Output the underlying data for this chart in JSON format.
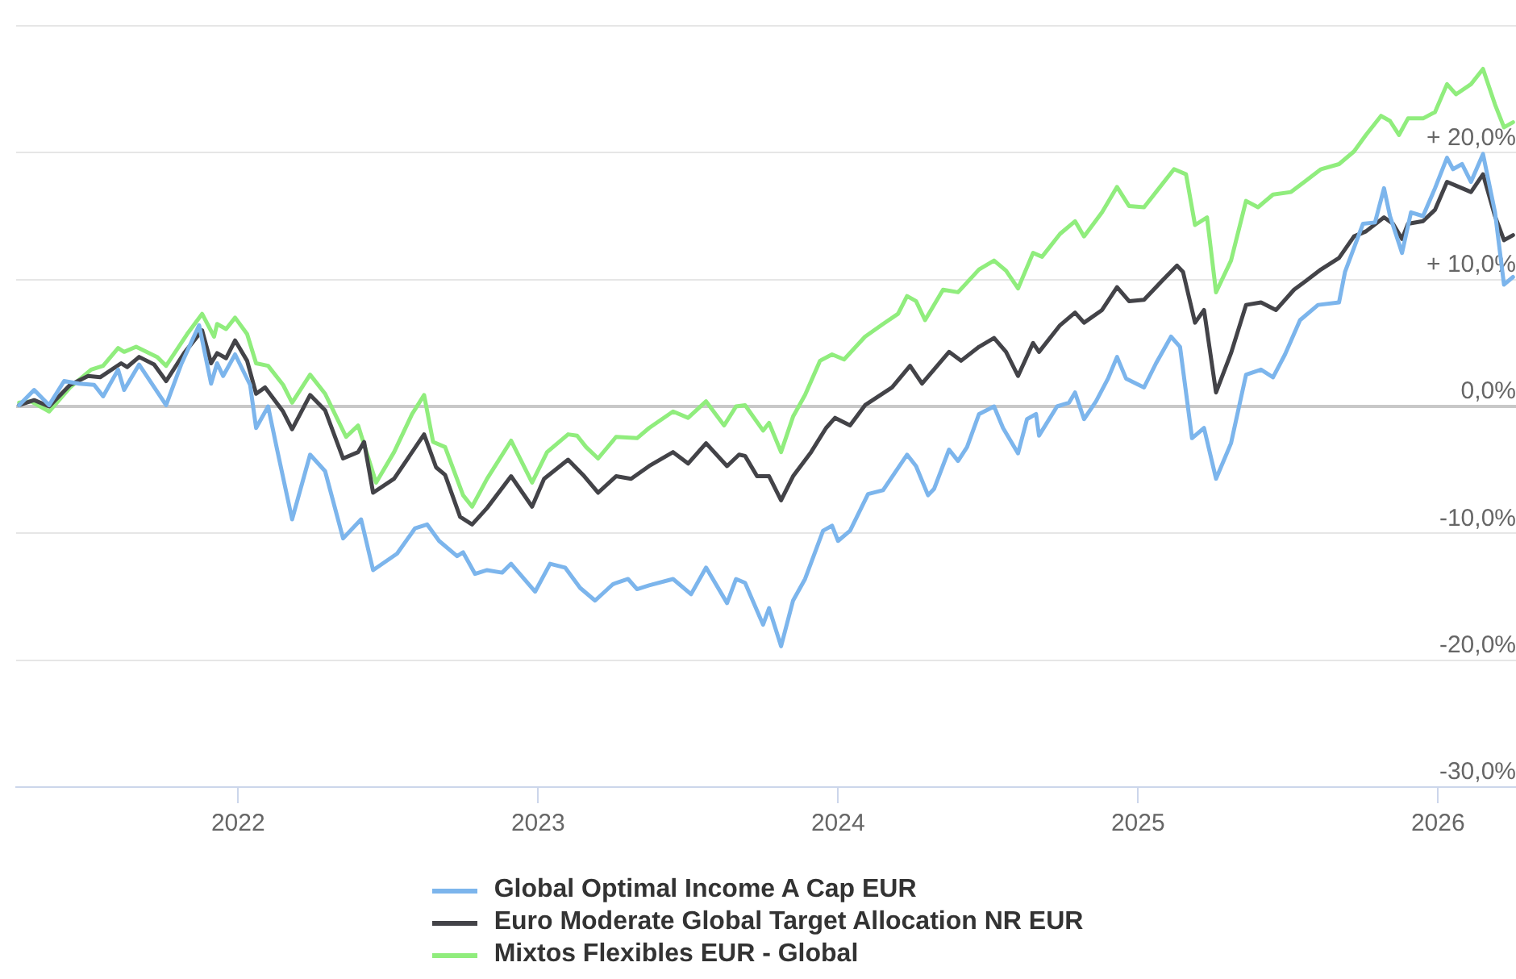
{
  "chart_data": {
    "type": "line",
    "legend": "bottom",
    "grid": "y",
    "marker": "none",
    "line_style": "solid",
    "xlim": [
      2021.26,
      2026.26
    ],
    "xticks": [
      2022,
      2023,
      2024,
      2025,
      2026
    ],
    "ylim": [
      -30,
      30
    ],
    "yticks": [
      {
        "value": -30,
        "label": "-30,0%"
      },
      {
        "value": -20,
        "label": "-20,0%"
      },
      {
        "value": -10,
        "label": "-10,0%"
      },
      {
        "value": 0,
        "label": "0,0%"
      },
      {
        "value": 10,
        "label": "+ 10,0%"
      },
      {
        "value": 20,
        "label": "+ 20,0%"
      },
      {
        "value": 30,
        "label": null
      }
    ],
    "series": [
      {
        "name": "Global Optimal Income A Cap EUR",
        "color": "#7cb5ec",
        "x": [
          2021.27,
          2021.32,
          2021.37,
          2021.42,
          2021.47,
          2021.52,
          2021.55,
          2021.6,
          2021.62,
          2021.67,
          2021.76,
          2021.81,
          2021.87,
          2021.91,
          2021.93,
          2021.95,
          2021.99,
          2022.04,
          2022.06,
          2022.1,
          2022.13,
          2022.18,
          2022.24,
          2022.29,
          2022.35,
          2022.41,
          2022.45,
          2022.53,
          2022.59,
          2022.63,
          2022.67,
          2022.73,
          2022.75,
          2022.79,
          2022.83,
          2022.88,
          2022.91,
          2022.99,
          2023.04,
          2023.09,
          2023.14,
          2023.19,
          2023.25,
          2023.3,
          2023.33,
          2023.37,
          2023.45,
          2023.51,
          2023.56,
          2023.63,
          2023.66,
          2023.69,
          2023.75,
          2023.77,
          2023.81,
          2023.85,
          2023.89,
          2023.95,
          2023.98,
          2024.0,
          2024.04,
          2024.1,
          2024.15,
          2024.19,
          2024.23,
          2024.26,
          2024.3,
          2024.32,
          2024.37,
          2024.4,
          2024.43,
          2024.47,
          2024.52,
          2024.55,
          2024.6,
          2024.63,
          2024.66,
          2024.67,
          2024.73,
          2024.77,
          2024.79,
          2024.82,
          2024.86,
          2024.9,
          2024.93,
          2024.96,
          2025.02,
          2025.06,
          2025.11,
          2025.14,
          2025.18,
          2025.22,
          2025.26,
          2025.31,
          2025.36,
          2025.41,
          2025.45,
          2025.49,
          2025.54,
          2025.6,
          2025.67,
          2025.69,
          2025.75,
          2025.79,
          2025.82,
          2025.84,
          2025.88,
          2025.91,
          2025.95,
          2025.99,
          2026.03,
          2026.05,
          2026.08,
          2026.11,
          2026.15,
          2026.19,
          2026.22,
          2026.25
        ],
        "values": [
          0.1,
          1.3,
          0.1,
          2.0,
          1.8,
          1.7,
          0.8,
          2.9,
          1.3,
          3.3,
          0.1,
          3.3,
          6.4,
          1.8,
          3.4,
          2.4,
          4.1,
          1.7,
          -1.7,
          0,
          -3.4,
          -8.9,
          -3.8,
          -5.1,
          -10.4,
          -8.9,
          -12.9,
          -11.6,
          -9.6,
          -9.3,
          -10.6,
          -11.8,
          -11.5,
          -13.2,
          -12.9,
          -13.1,
          -12.4,
          -14.6,
          -12.4,
          -12.7,
          -14.3,
          -15.3,
          -14.0,
          -13.6,
          -14.4,
          -14.1,
          -13.6,
          -14.8,
          -12.7,
          -15.5,
          -13.6,
          -13.9,
          -17.2,
          -15.9,
          -18.9,
          -15.3,
          -13.6,
          -9.8,
          -9.4,
          -10.6,
          -9.8,
          -6.9,
          -6.6,
          -5.2,
          -3.8,
          -4.7,
          -7.0,
          -6.5,
          -3.4,
          -4.3,
          -3.2,
          -0.6,
          0,
          -1.7,
          -3.7,
          -1.0,
          -0.6,
          -2.3,
          0,
          0.3,
          1.1,
          -1.0,
          0.4,
          2.2,
          3.9,
          2.2,
          1.5,
          3.4,
          5.5,
          4.7,
          -2.5,
          -1.7,
          -5.7,
          -2.9,
          2.5,
          2.9,
          2.3,
          4.1,
          6.8,
          8.0,
          8.2,
          10.6,
          14.4,
          14.5,
          17.2,
          15.0,
          12.1,
          15.3,
          15.0,
          17.2,
          19.6,
          18.7,
          19.1,
          17.7,
          19.9,
          15.3,
          9.6,
          10.2
        ]
      },
      {
        "name": "Euro Moderate Global Target Allocation NR EUR",
        "color": "#434348",
        "x": [
          2021.27,
          2021.32,
          2021.37,
          2021.44,
          2021.5,
          2021.54,
          2021.61,
          2021.63,
          2021.67,
          2021.72,
          2021.76,
          2021.82,
          2021.88,
          2021.91,
          2021.93,
          2021.96,
          2021.99,
          2022.03,
          2022.06,
          2022.09,
          2022.15,
          2022.18,
          2022.24,
          2022.29,
          2022.35,
          2022.4,
          2022.42,
          2022.45,
          2022.52,
          2022.62,
          2022.66,
          2022.69,
          2022.74,
          2022.78,
          2022.83,
          2022.91,
          2022.98,
          2023.02,
          2023.1,
          2023.15,
          2023.2,
          2023.26,
          2023.31,
          2023.37,
          2023.45,
          2023.5,
          2023.56,
          2023.63,
          2023.67,
          2023.69,
          2023.73,
          2023.77,
          2023.81,
          2023.85,
          2023.91,
          2023.96,
          2023.99,
          2024.04,
          2024.09,
          2024.18,
          2024.24,
          2024.28,
          2024.37,
          2024.41,
          2024.47,
          2024.52,
          2024.56,
          2024.6,
          2024.65,
          2024.67,
          2024.74,
          2024.79,
          2024.82,
          2024.88,
          2024.93,
          2024.97,
          2025.02,
          2025.08,
          2025.13,
          2025.15,
          2025.19,
          2025.22,
          2025.26,
          2025.31,
          2025.36,
          2025.41,
          2025.46,
          2025.52,
          2025.56,
          2025.61,
          2025.67,
          2025.72,
          2025.76,
          2025.82,
          2025.85,
          2025.88,
          2025.9,
          2025.95,
          2025.99,
          2026.03,
          2026.08,
          2026.11,
          2026.15,
          2026.19,
          2026.22,
          2026.25
        ],
        "values": [
          0.1,
          0.5,
          0,
          1.7,
          2.4,
          2.3,
          3.4,
          3.1,
          3.9,
          3.3,
          2.0,
          4.2,
          6.0,
          3.4,
          4.2,
          3.8,
          5.2,
          3.6,
          1.0,
          1.5,
          -0.4,
          -1.8,
          0.9,
          -0.3,
          -4.1,
          -3.6,
          -2.8,
          -6.8,
          -5.7,
          -2.2,
          -4.8,
          -5.4,
          -8.7,
          -9.3,
          -8.0,
          -5.5,
          -7.9,
          -5.7,
          -4.2,
          -5.4,
          -6.8,
          -5.5,
          -5.7,
          -4.7,
          -3.6,
          -4.5,
          -2.9,
          -4.7,
          -3.8,
          -3.9,
          -5.5,
          -5.5,
          -7.4,
          -5.5,
          -3.6,
          -1.7,
          -0.9,
          -1.5,
          0.1,
          1.5,
          3.2,
          1.8,
          4.3,
          3.6,
          4.7,
          5.4,
          4.3,
          2.4,
          5.0,
          4.3,
          6.4,
          7.4,
          6.6,
          7.6,
          9.4,
          8.3,
          8.4,
          9.9,
          11.1,
          10.6,
          6.6,
          7.6,
          1.1,
          4.2,
          8.0,
          8.2,
          7.6,
          9.2,
          9.9,
          10.8,
          11.7,
          13.4,
          13.8,
          14.9,
          14.4,
          13.2,
          14.4,
          14.6,
          15.5,
          17.7,
          17.2,
          16.9,
          18.3,
          15.0,
          13.1,
          13.5
        ]
      },
      {
        "name": "Mixtos Flexibles EUR - Global",
        "color": "#90ed7d",
        "x": [
          2021.27,
          2021.31,
          2021.37,
          2021.44,
          2021.51,
          2021.55,
          2021.6,
          2021.62,
          2021.66,
          2021.73,
          2021.76,
          2021.83,
          2021.88,
          2021.92,
          2021.93,
          2021.96,
          2021.99,
          2022.03,
          2022.06,
          2022.1,
          2022.15,
          2022.18,
          2022.24,
          2022.29,
          2022.36,
          2022.4,
          2022.46,
          2022.52,
          2022.58,
          2022.62,
          2022.65,
          2022.69,
          2022.75,
          2022.78,
          2022.83,
          2022.91,
          2022.98,
          2023.03,
          2023.1,
          2023.13,
          2023.16,
          2023.2,
          2023.26,
          2023.33,
          2023.37,
          2023.45,
          2023.5,
          2023.56,
          2023.62,
          2023.66,
          2023.69,
          2023.75,
          2023.77,
          2023.81,
          2023.85,
          2023.89,
          2023.94,
          2023.98,
          2024.02,
          2024.09,
          2024.15,
          2024.2,
          2024.23,
          2024.26,
          2024.29,
          2024.35,
          2024.4,
          2024.47,
          2024.52,
          2024.56,
          2024.6,
          2024.65,
          2024.68,
          2024.74,
          2024.79,
          2024.82,
          2024.88,
          2024.93,
          2024.97,
          2025.02,
          2025.06,
          2025.12,
          2025.16,
          2025.19,
          2025.23,
          2025.26,
          2025.31,
          2025.36,
          2025.4,
          2025.45,
          2025.51,
          2025.56,
          2025.61,
          2025.67,
          2025.72,
          2025.76,
          2025.81,
          2025.84,
          2025.87,
          2025.9,
          2025.95,
          2025.99,
          2026.03,
          2026.06,
          2026.11,
          2026.15,
          2026.19,
          2026.22,
          2026.25
        ],
        "values": [
          0.3,
          0.4,
          -0.4,
          1.5,
          2.9,
          3.2,
          4.6,
          4.3,
          4.7,
          3.9,
          3.2,
          5.7,
          7.3,
          5.5,
          6.5,
          6.1,
          7.0,
          5.7,
          3.4,
          3.2,
          1.7,
          0.3,
          2.5,
          1.0,
          -2.4,
          -1.5,
          -6.0,
          -3.6,
          -0.6,
          0.9,
          -2.8,
          -3.2,
          -7.0,
          -7.9,
          -5.7,
          -2.7,
          -6.0,
          -3.6,
          -2.2,
          -2.3,
          -3.2,
          -4.1,
          -2.4,
          -2.5,
          -1.7,
          -0.4,
          -0.9,
          0.4,
          -1.5,
          0,
          0.1,
          -1.9,
          -1.3,
          -3.6,
          -0.8,
          0.9,
          3.6,
          4.1,
          3.7,
          5.5,
          6.5,
          7.3,
          8.7,
          8.3,
          6.8,
          9.2,
          9.0,
          10.8,
          11.5,
          10.7,
          9.3,
          12.1,
          11.8,
          13.6,
          14.6,
          13.4,
          15.3,
          17.3,
          15.8,
          15.7,
          16.9,
          18.7,
          18.3,
          14.3,
          14.9,
          9.0,
          11.5,
          16.2,
          15.7,
          16.7,
          16.9,
          17.8,
          18.7,
          19.1,
          20.1,
          21.4,
          22.9,
          22.5,
          21.4,
          22.7,
          22.7,
          23.2,
          25.4,
          24.6,
          25.4,
          26.6,
          23.8,
          22.0,
          22.4
        ]
      }
    ]
  }
}
